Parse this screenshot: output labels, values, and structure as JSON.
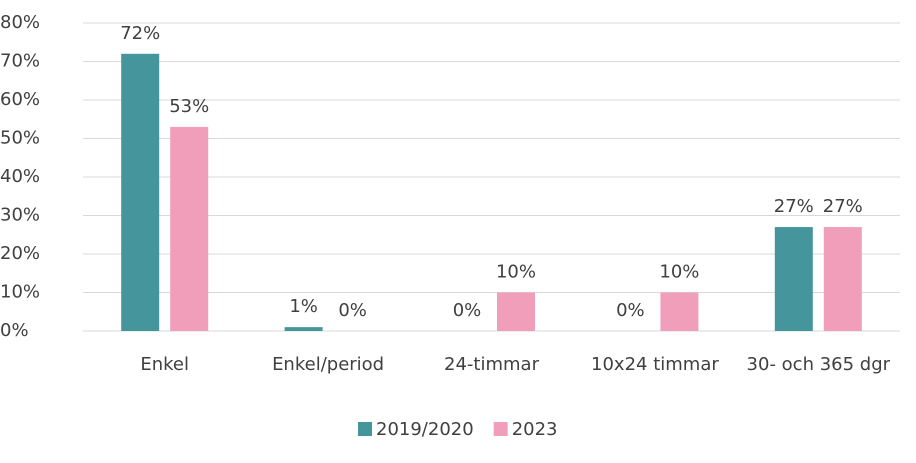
{
  "chart_data": {
    "type": "bar",
    "categories": [
      "Enkel",
      "Enkel/period",
      "24-timmar",
      "10x24 timmar",
      "30- och 365 dgr"
    ],
    "series": [
      {
        "name": "2019/2020",
        "color": "#44959c",
        "values": [
          72,
          1,
          0,
          0,
          27
        ],
        "value_labels": [
          "72%",
          "1%",
          "0%",
          "0%",
          "27%"
        ]
      },
      {
        "name": "2023",
        "color": "#f19eba",
        "values": [
          53,
          0,
          10,
          10,
          27
        ],
        "value_labels": [
          "53%",
          "0%",
          "10%",
          "10%",
          "27%"
        ]
      }
    ],
    "ylim": [
      0,
      80
    ],
    "yticks": [
      {
        "value": 0,
        "label": "0%"
      },
      {
        "value": 10,
        "label": "10%"
      },
      {
        "value": 20,
        "label": "20%"
      },
      {
        "value": 30,
        "label": "30%"
      },
      {
        "value": 40,
        "label": "40%"
      },
      {
        "value": 50,
        "label": "50%"
      },
      {
        "value": 60,
        "label": "60%"
      },
      {
        "value": 70,
        "label": "70%"
      },
      {
        "value": 80,
        "label": "80%"
      }
    ],
    "grid": true,
    "legend": "bottom"
  }
}
